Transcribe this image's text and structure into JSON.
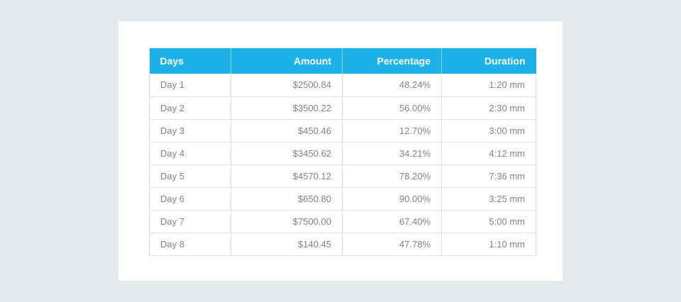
{
  "table": {
    "columns": [
      "Days",
      "Amount",
      "Percentage",
      "Duration"
    ],
    "rows": [
      [
        "Day 1",
        "$2500.84",
        "48.24%",
        "1:20 mm"
      ],
      [
        "Day 2",
        "$3500.22",
        "56.00%",
        "2:30 mm"
      ],
      [
        "Day 3",
        "$450.46",
        "12.70%",
        "3:00 mm"
      ],
      [
        "Day 4",
        "$3450.62",
        "34.21%",
        "4:12 mm"
      ],
      [
        "Day 5",
        "$4570.12",
        "78.20%",
        "7:36 mm"
      ],
      [
        "Day 6",
        "$650.80",
        "90.00%",
        "3:25 mm"
      ],
      [
        "Day 7",
        "$7500.00",
        "67.40%",
        "5:00 mm"
      ],
      [
        "Day 8",
        "$140.45",
        "47.78%",
        "1:10 mm"
      ]
    ]
  },
  "colors": {
    "header_background": "#1cb1e8",
    "header_text": "#ffffff",
    "cell_text": "#7d8293",
    "page_background": "#e4e9ed",
    "card_background": "#ffffff"
  }
}
